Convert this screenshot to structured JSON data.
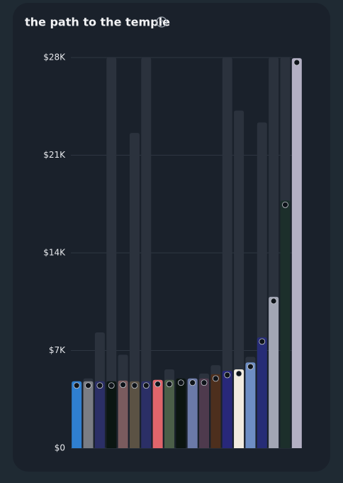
{
  "chart_data": {
    "type": "bar",
    "title": "the path to the temple",
    "categories": [
      null,
      null,
      null,
      null,
      null,
      null,
      null,
      null,
      null,
      null,
      null,
      null,
      null,
      null,
      null,
      null,
      null,
      null,
      null,
      null
    ],
    "series": [
      {
        "color": "#2b323d",
        "values": [
          4800,
          5000,
          8300,
          28000,
          6700,
          22600,
          28000,
          4900,
          5650,
          5000,
          5000,
          5350,
          5950,
          28000,
          24200,
          6550,
          23350,
          28000,
          28000,
          28000
        ]
      },
      {
        "colors": [
          "#2f7fd0",
          "#7a7d84",
          "#2b2f66",
          "#0b1612",
          "#7a5b5e",
          "#5b5244",
          "#2b2f66",
          "#e0656b",
          "#4b5e48",
          "#0b1410",
          "#6b7aa8",
          "#4e3a4d",
          "#4d2f1d",
          "#28287a",
          "#f2ece0",
          "#6e8ec4",
          "#262c76",
          "#a2a6b4",
          "#1c2f2b",
          "#b3b0c4"
        ],
        "values": [
          4800,
          4800,
          4800,
          4800,
          4850,
          4800,
          4800,
          4900,
          4900,
          5000,
          5000,
          5000,
          5300,
          5550,
          5650,
          6150,
          7950,
          10850,
          17750,
          27950
        ]
      }
    ],
    "ylim": [
      0,
      28000
    ],
    "yticks": [
      {
        "value": 0,
        "label": "$0"
      },
      {
        "value": 7000,
        "label": "$7K"
      },
      {
        "value": 14000,
        "label": "$14K"
      },
      {
        "value": 21000,
        "label": "$21K"
      },
      {
        "value": 28000,
        "label": "$28K"
      }
    ],
    "grid": true
  }
}
